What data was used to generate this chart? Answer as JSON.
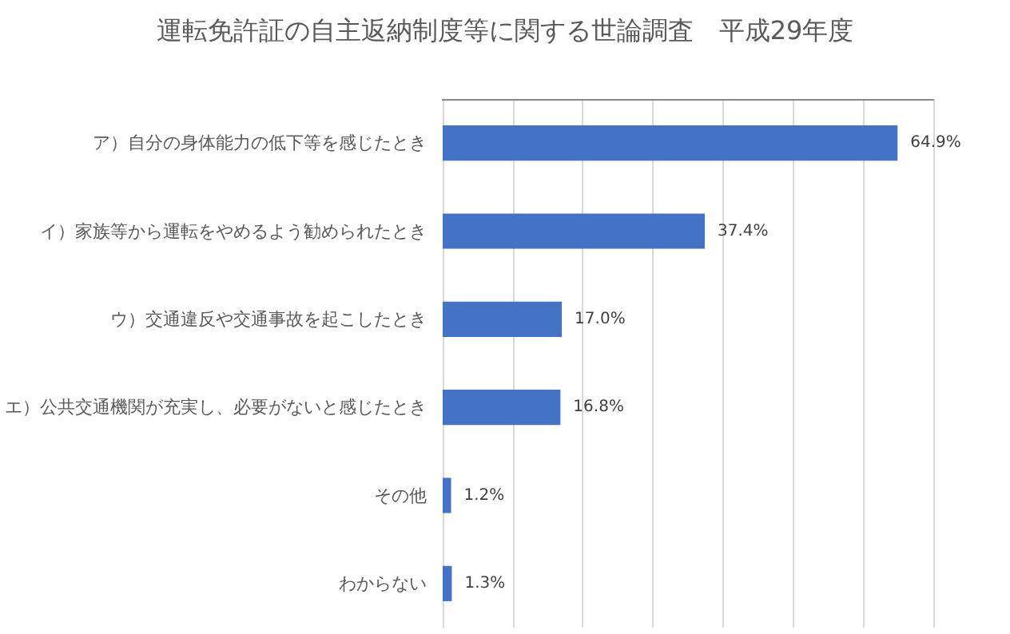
{
  "chart_data": {
    "type": "bar",
    "orientation": "horizontal",
    "title": "運転免許証の自主返納制度等に関する世論調査　平成29年度",
    "categories": [
      "ア）自分の身体能力の低下等を感じたとき",
      "イ）家族等から運転をやめるよう勧められたとき",
      "ウ）交通違反や交通事故を起こしたとき",
      "エ）公共交通機関が充実し、必要がないと感じたとき",
      "その他",
      "わからない"
    ],
    "values": [
      64.9,
      37.4,
      17.0,
      16.8,
      1.2,
      1.3
    ],
    "value_labels": [
      "64.9%",
      "37.4%",
      "17.0%",
      "16.8%",
      "1.2%",
      "1.3%"
    ],
    "color": "#4472c4",
    "xlim": [
      0,
      70
    ],
    "xticks": [
      {
        "value": 0,
        "label": null
      },
      {
        "value": 10,
        "label": null
      },
      {
        "value": 20,
        "label": null
      },
      {
        "value": 30,
        "label": null
      },
      {
        "value": 40,
        "label": null
      },
      {
        "value": 50,
        "label": null
      },
      {
        "value": 60,
        "label": null
      },
      {
        "value": 70,
        "label": null
      }
    ],
    "tick_labels": "y",
    "grid": "x"
  }
}
